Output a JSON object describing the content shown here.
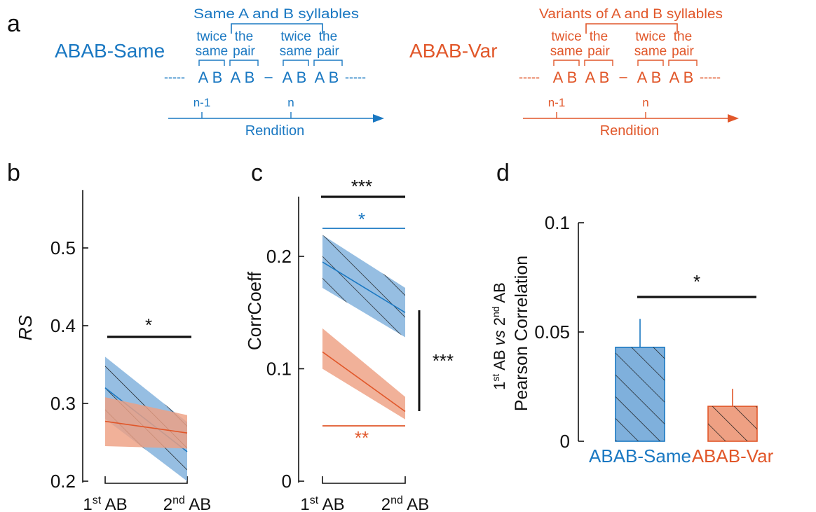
{
  "colors": {
    "same": "#1a78c2",
    "var": "#e1572a",
    "same_fill": "#7fb0dc",
    "var_fill": "#eea083",
    "black": "#111111"
  },
  "panel_labels": [
    "a",
    "b",
    "c",
    "d"
  ],
  "schematic": {
    "same": {
      "title": "ABAB-Same",
      "header": "Same A and B syllables",
      "twice": "twice",
      "same": "same",
      "the": "the",
      "pair": "pair",
      "a": "A",
      "b": "B",
      "dots": "-----",
      "dash": "–",
      "tick1": "n-1",
      "tick2": "n",
      "axis": "Rendition"
    },
    "var": {
      "title": "ABAB-Var",
      "header": "Variants of A and B syllables",
      "twice": "twice",
      "same": "same",
      "the": "the",
      "pair": "pair",
      "a": "A",
      "b": "B",
      "dots": "-----",
      "dash": "–",
      "tick1": "n-1",
      "tick2": "n",
      "axis": "Rendition"
    }
  },
  "chart_data": [
    {
      "panel": "b",
      "type": "line",
      "ylabel": "RS",
      "ylim": [
        0.2,
        0.57
      ],
      "yticks": [
        "0.2",
        "0.3",
        "0.4",
        "0.5"
      ],
      "x": [
        "1st AB",
        "2nd AB"
      ],
      "xtick_parts": [
        [
          "1",
          "st",
          " AB"
        ],
        [
          "2",
          "nd",
          " AB"
        ]
      ],
      "series": [
        {
          "key": "same",
          "values": [
            0.32,
            0.238
          ],
          "band_low": [
            0.28,
            0.2
          ],
          "band_high": [
            0.36,
            0.276
          ]
        },
        {
          "key": "var",
          "values": [
            0.277,
            0.262
          ],
          "band_low": [
            0.245,
            0.242
          ],
          "band_high": [
            0.308,
            0.285
          ]
        }
      ],
      "sig": [
        {
          "label": "*",
          "color": "black"
        }
      ]
    },
    {
      "panel": "c",
      "type": "line",
      "ylabel": "CorrCoeff",
      "ylim": [
        0,
        0.25
      ],
      "yticks": [
        "0",
        "0.1",
        "0.2"
      ],
      "x": [
        "1st AB",
        "2nd AB"
      ],
      "xtick_parts": [
        [
          "1",
          "st",
          " AB"
        ],
        [
          "2",
          "nd",
          " AB"
        ]
      ],
      "series": [
        {
          "key": "same",
          "values": [
            0.195,
            0.15
          ],
          "band_low": [
            0.172,
            0.128
          ],
          "band_high": [
            0.219,
            0.172
          ]
        },
        {
          "key": "var",
          "values": [
            0.115,
            0.062
          ],
          "band_low": [
            0.1,
            0.055
          ],
          "band_high": [
            0.136,
            0.075
          ]
        }
      ],
      "sig": [
        {
          "label": "***",
          "color": "black"
        },
        {
          "label": "*",
          "color": "same"
        },
        {
          "label": "**",
          "color": "var"
        },
        {
          "label": "***",
          "color": "black"
        }
      ]
    },
    {
      "panel": "d",
      "type": "bar",
      "ylabel_line1": "1st AB vs 2nd AB",
      "ylabel_line1_parts": [
        "1",
        "st",
        " AB ",
        "vs",
        " 2",
        "nd",
        " AB"
      ],
      "ylabel_line2": "Pearson Correlation",
      "ylim": [
        0,
        0.1
      ],
      "yticks": [
        "0",
        "0.05",
        "0.1"
      ],
      "categories": [
        "ABAB-Same",
        "ABAB-Var"
      ],
      "values": [
        0.043,
        0.016
      ],
      "errors": [
        0.013,
        0.008
      ],
      "sig": [
        {
          "label": "*",
          "color": "black"
        }
      ]
    }
  ]
}
